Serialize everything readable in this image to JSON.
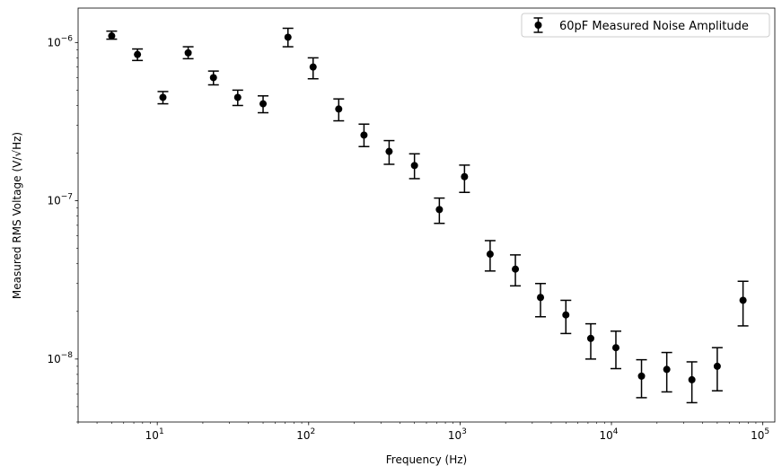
{
  "chart_data": {
    "type": "scatter",
    "x_scale": "log",
    "y_scale": "log",
    "xlabel": "Frequency (Hz)",
    "ylabel": "Measured RMS Voltage",
    "ylabel_unit": "(V/√Hz)",
    "xlim": [
      3.0,
      120000
    ],
    "ylim": [
      4e-09,
      1.65e-06
    ],
    "x_major_ticks": [
      10,
      100,
      1000,
      10000,
      100000
    ],
    "x_major_labels": [
      "10",
      "10",
      "10",
      "10",
      "10"
    ],
    "x_major_exponents": [
      "1",
      "2",
      "3",
      "4",
      "5"
    ],
    "y_major_ticks": [
      1e-08,
      1e-07,
      1e-06
    ],
    "y_major_labels": [
      "10",
      "10",
      "10"
    ],
    "y_major_exponents": [
      "−8",
      "−7",
      "−6"
    ],
    "grid": false,
    "legend": {
      "position": "top-right",
      "entries": [
        "60pF Measured Noise Amplitude"
      ]
    },
    "series": [
      {
        "name": "60pF Measured Noise Amplitude",
        "color": "#000000",
        "marker": "circle",
        "points": [
          {
            "x": 5.0,
            "y": 1.1e-06,
            "lo": 1.05e-06,
            "hi": 1.18e-06
          },
          {
            "x": 7.4,
            "y": 8.4e-07,
            "lo": 7.7e-07,
            "hi": 9.1e-07
          },
          {
            "x": 10.9,
            "y": 4.5e-07,
            "lo": 4.1e-07,
            "hi": 4.9e-07
          },
          {
            "x": 16.0,
            "y": 8.6e-07,
            "lo": 7.9e-07,
            "hi": 9.4e-07
          },
          {
            "x": 23.5,
            "y": 6e-07,
            "lo": 5.4e-07,
            "hi": 6.6e-07
          },
          {
            "x": 34.0,
            "y": 4.5e-07,
            "lo": 4e-07,
            "hi": 5e-07
          },
          {
            "x": 50.0,
            "y": 4.1e-07,
            "lo": 3.6e-07,
            "hi": 4.6e-07
          },
          {
            "x": 73.0,
            "y": 1.08e-06,
            "lo": 9.4e-07,
            "hi": 1.23e-06
          },
          {
            "x": 107.0,
            "y": 7e-07,
            "lo": 5.9e-07,
            "hi": 8e-07
          },
          {
            "x": 158.0,
            "y": 3.8e-07,
            "lo": 3.2e-07,
            "hi": 4.4e-07
          },
          {
            "x": 232.0,
            "y": 2.6e-07,
            "lo": 2.2e-07,
            "hi": 3.05e-07
          },
          {
            "x": 340.0,
            "y": 2.05e-07,
            "lo": 1.7e-07,
            "hi": 2.4e-07
          },
          {
            "x": 500.0,
            "y": 1.67e-07,
            "lo": 1.38e-07,
            "hi": 1.98e-07
          },
          {
            "x": 730.0,
            "y": 8.8e-08,
            "lo": 7.2e-08,
            "hi": 1.04e-07
          },
          {
            "x": 1070.0,
            "y": 1.42e-07,
            "lo": 1.13e-07,
            "hi": 1.68e-07
          },
          {
            "x": 1580.0,
            "y": 4.6e-08,
            "lo": 3.6e-08,
            "hi": 5.6e-08
          },
          {
            "x": 2320.0,
            "y": 3.7e-08,
            "lo": 2.9e-08,
            "hi": 4.55e-08
          },
          {
            "x": 3400.0,
            "y": 2.45e-08,
            "lo": 1.85e-08,
            "hi": 3e-08
          },
          {
            "x": 5000.0,
            "y": 1.9e-08,
            "lo": 1.45e-08,
            "hi": 2.35e-08
          },
          {
            "x": 7300.0,
            "y": 1.35e-08,
            "lo": 1e-08,
            "hi": 1.67e-08
          },
          {
            "x": 10700.0,
            "y": 1.18e-08,
            "lo": 8.7e-09,
            "hi": 1.5e-08
          },
          {
            "x": 15800.0,
            "y": 7.8e-09,
            "lo": 5.7e-09,
            "hi": 9.9e-09
          },
          {
            "x": 23200.0,
            "y": 8.6e-09,
            "lo": 6.2e-09,
            "hi": 1.1e-08
          },
          {
            "x": 34000.0,
            "y": 7.4e-09,
            "lo": 5.3e-09,
            "hi": 9.6e-09
          },
          {
            "x": 50000.0,
            "y": 9e-09,
            "lo": 6.3e-09,
            "hi": 1.18e-08
          },
          {
            "x": 74000.0,
            "y": 2.35e-08,
            "lo": 1.62e-08,
            "hi": 3.1e-08
          }
        ]
      }
    ]
  }
}
